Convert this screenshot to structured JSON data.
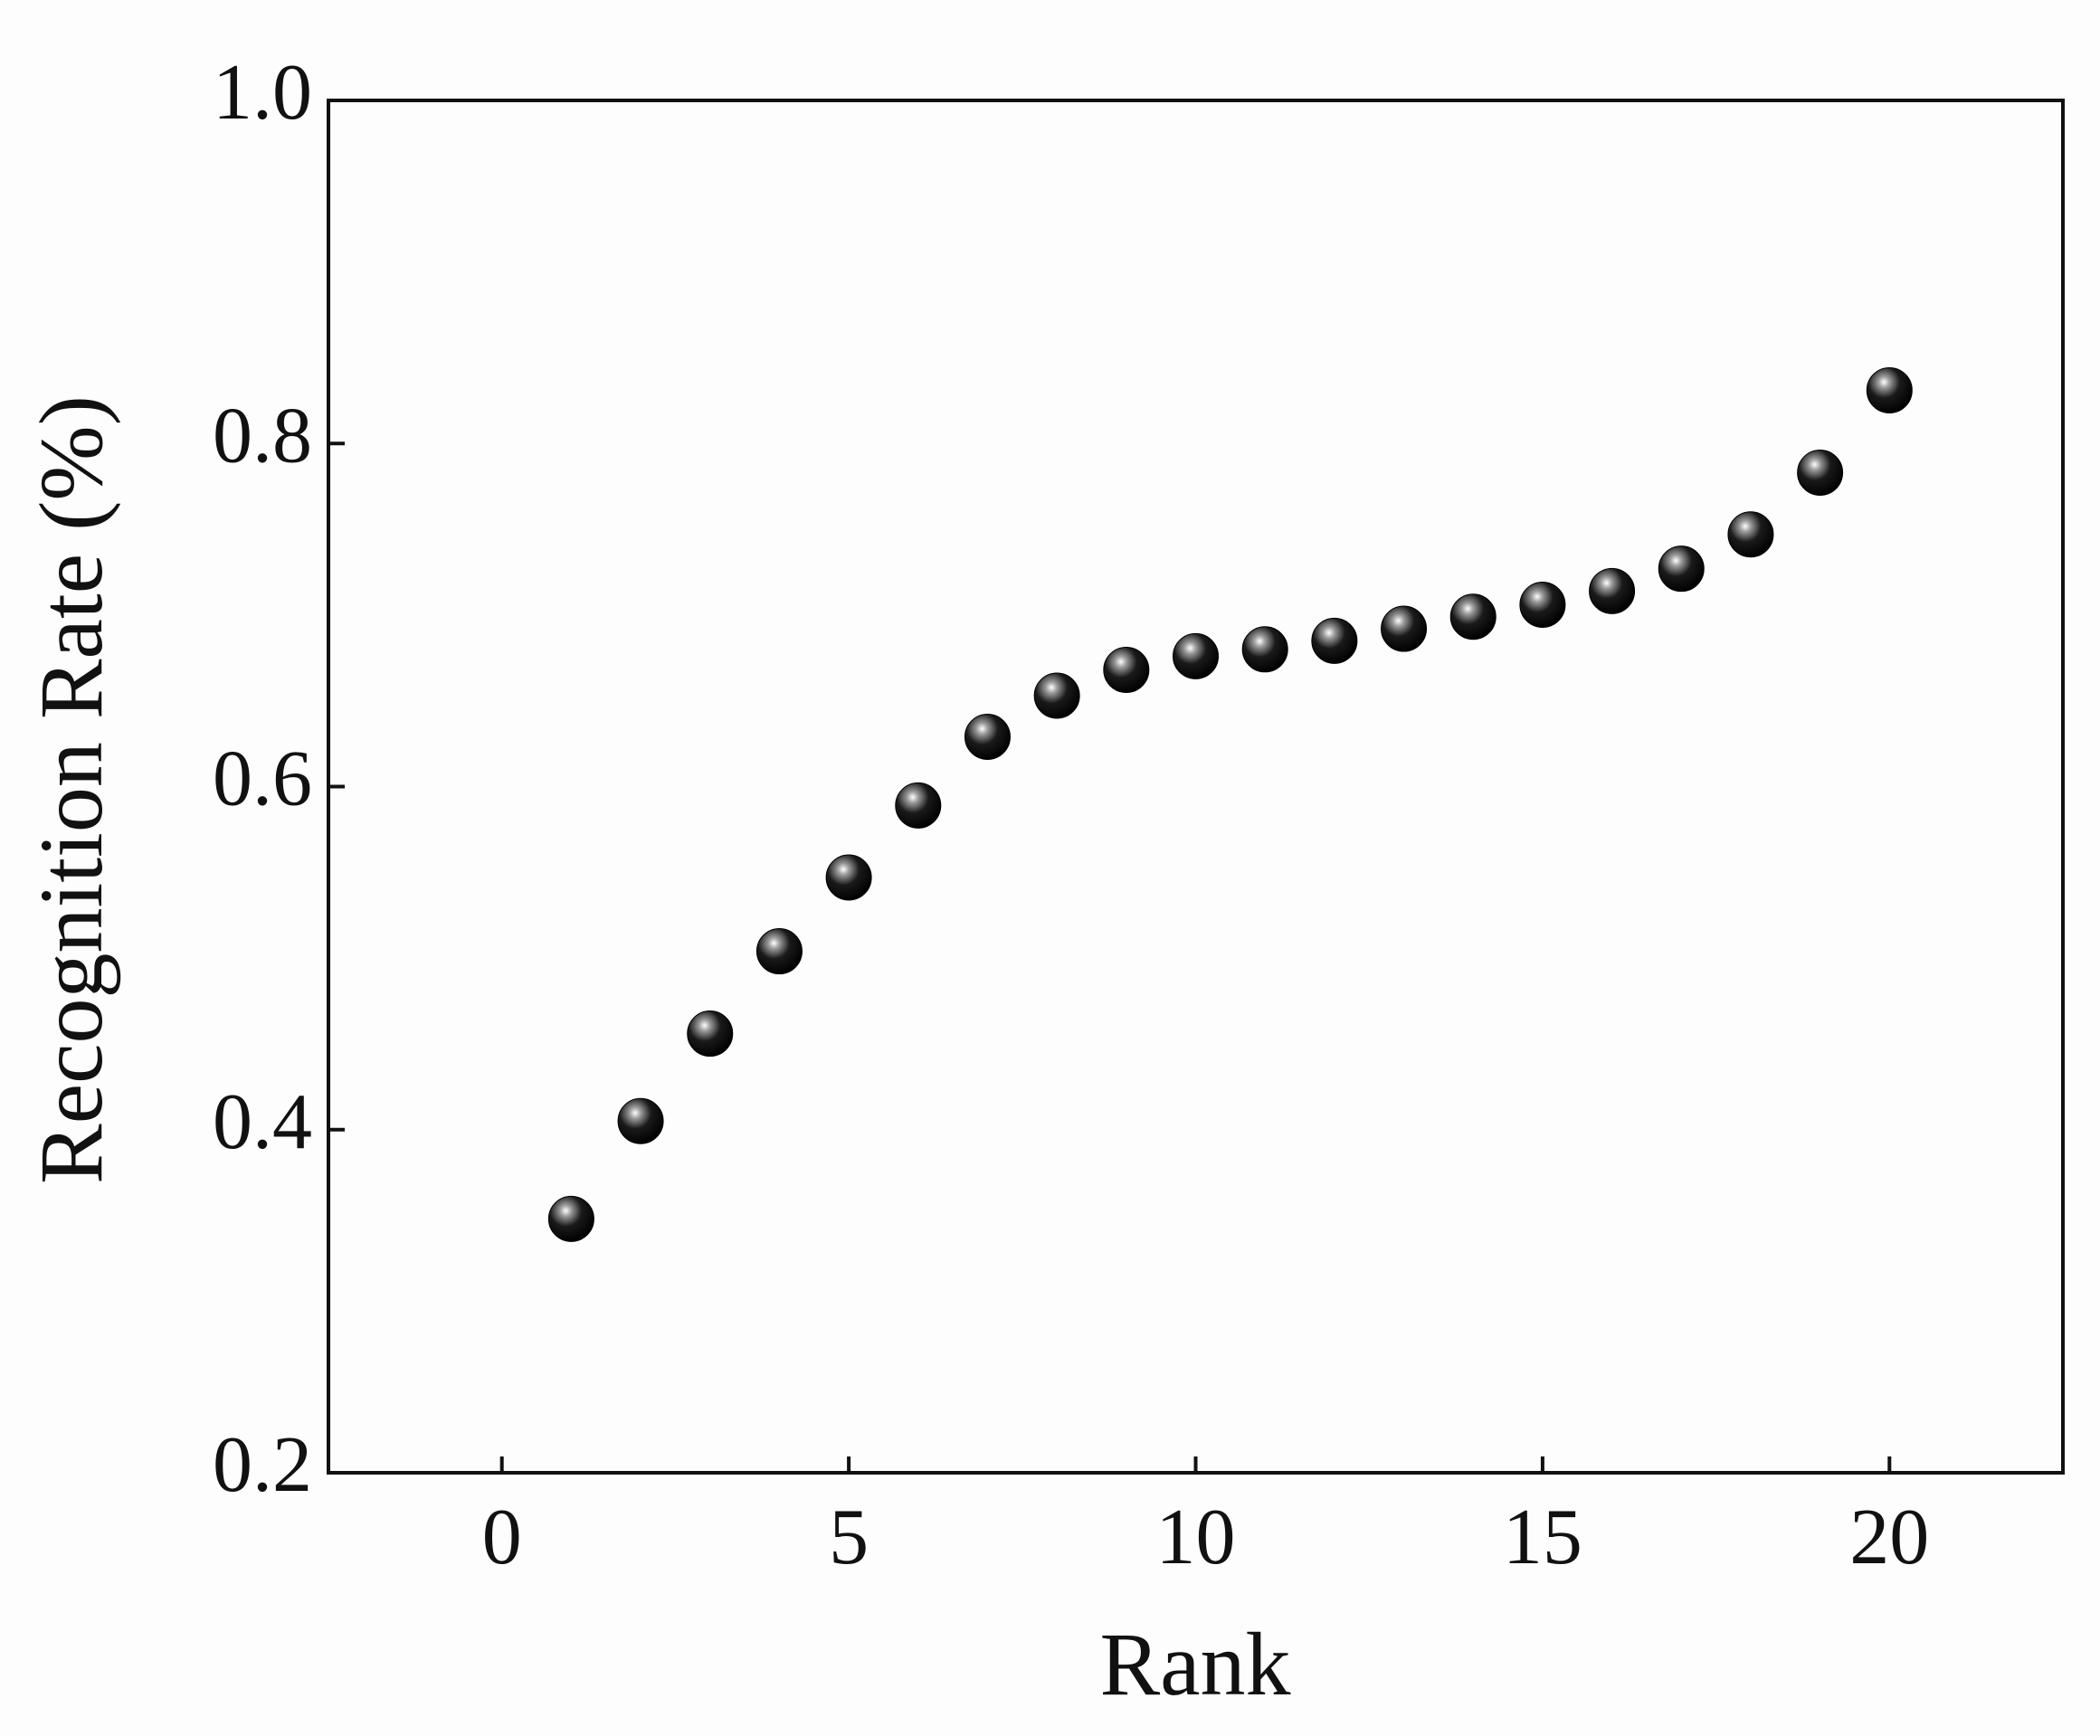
{
  "chart_data": {
    "type": "scatter",
    "x_label": "Rank",
    "y_label": "Recognition Rate (%)",
    "x": [
      1,
      2,
      3,
      4,
      5,
      6,
      7,
      8,
      9,
      10,
      11,
      12,
      13,
      14,
      15,
      16,
      17,
      18,
      19,
      20
    ],
    "values": [
      0.348,
      0.405,
      0.456,
      0.504,
      0.547,
      0.589,
      0.629,
      0.653,
      0.668,
      0.676,
      0.68,
      0.685,
      0.692,
      0.699,
      0.706,
      0.714,
      0.727,
      0.747,
      0.783,
      0.831
    ],
    "color": "#000000",
    "xlim": [
      -2.5,
      22.5
    ],
    "xticks": [
      0,
      5,
      10,
      15,
      20
    ],
    "ylim": [
      0.2,
      1.0
    ],
    "yticks": [
      0.2,
      0.4,
      0.6,
      0.8,
      {
        "value": 1,
        "label": "1.0"
      }
    ],
    "grid": false
  }
}
